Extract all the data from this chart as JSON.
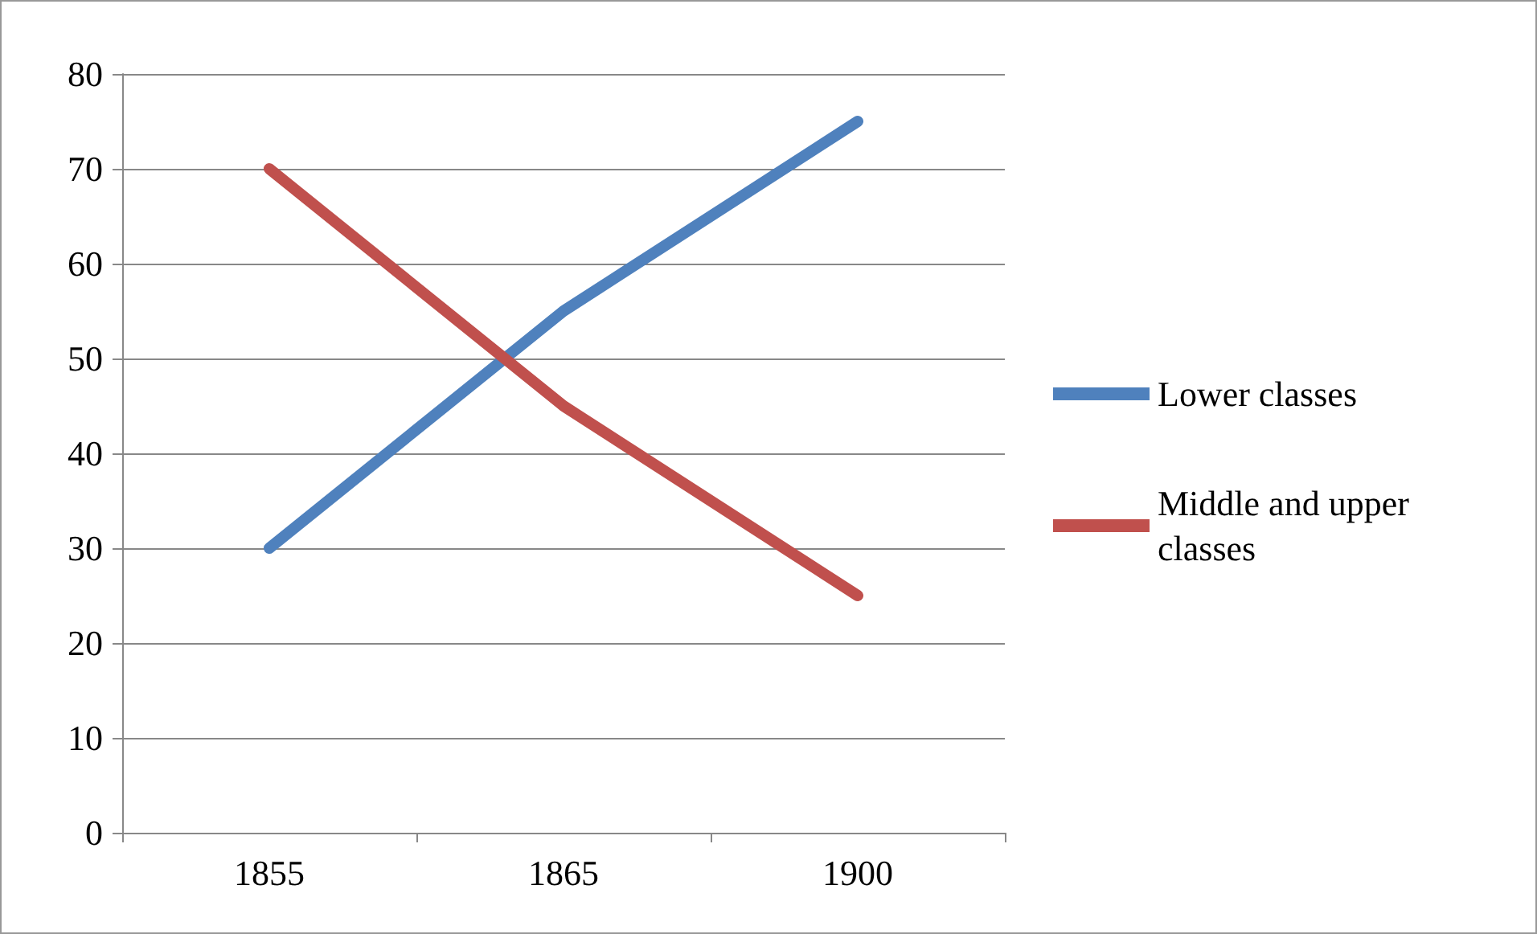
{
  "chart_data": {
    "type": "line",
    "categories": [
      "1855",
      "1865",
      "1900"
    ],
    "series": [
      {
        "name": "Lower classes",
        "color": "#4f81bd",
        "values": [
          30,
          55,
          75
        ]
      },
      {
        "name": "Middle and upper classes",
        "color": "#c0504d",
        "values": [
          70,
          45,
          25
        ]
      }
    ],
    "ylim": [
      0,
      80
    ],
    "yticks": [
      0,
      10,
      20,
      30,
      40,
      50,
      60,
      70,
      80
    ],
    "grid": "y",
    "legend": "right",
    "marker": "none",
    "line_style": "solid"
  }
}
